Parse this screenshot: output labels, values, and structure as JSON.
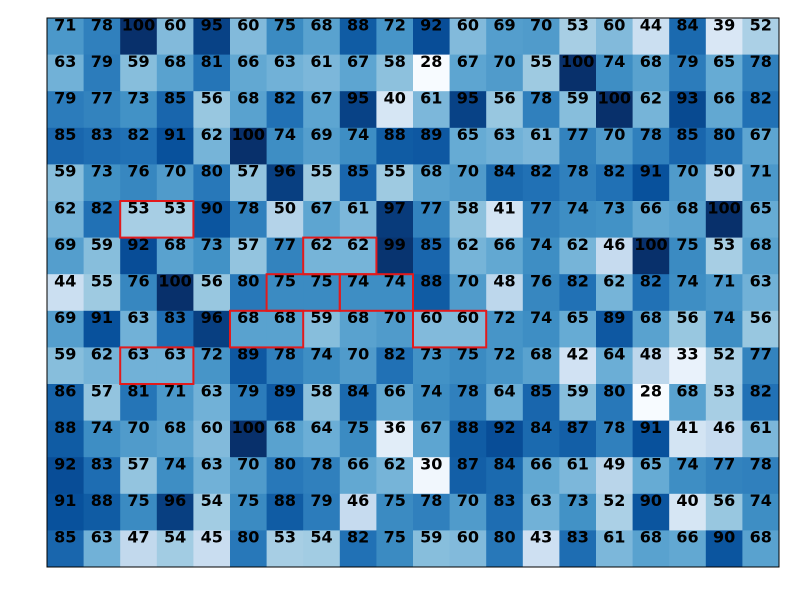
{
  "chart_data": {
    "type": "heatmap",
    "title": "",
    "xlabel": "",
    "ylabel": "",
    "rows": 15,
    "cols": 20,
    "colormap": "Blues",
    "vmin": 28,
    "vmax": 100,
    "values": [
      [
        71,
        78,
        100,
        60,
        95,
        60,
        75,
        68,
        88,
        72,
        92,
        60,
        69,
        70,
        53,
        60,
        44,
        84,
        39,
        52
      ],
      [
        63,
        79,
        59,
        68,
        81,
        66,
        63,
        61,
        67,
        58,
        28,
        67,
        70,
        55,
        100,
        74,
        68,
        79,
        65,
        78
      ],
      [
        79,
        77,
        73,
        85,
        56,
        68,
        82,
        67,
        95,
        40,
        61,
        95,
        56,
        78,
        59,
        100,
        62,
        93,
        66,
        82
      ],
      [
        85,
        83,
        82,
        91,
        62,
        100,
        74,
        69,
        74,
        88,
        89,
        65,
        63,
        61,
        77,
        70,
        78,
        85,
        80,
        67
      ],
      [
        59,
        73,
        76,
        70,
        80,
        57,
        96,
        55,
        85,
        55,
        68,
        70,
        84,
        82,
        78,
        82,
        91,
        70,
        50,
        71
      ],
      [
        62,
        82,
        53,
        53,
        90,
        78,
        50,
        67,
        61,
        97,
        77,
        58,
        41,
        77,
        74,
        73,
        66,
        68,
        100,
        65
      ],
      [
        69,
        59,
        92,
        68,
        73,
        57,
        77,
        62,
        62,
        99,
        85,
        62,
        66,
        74,
        62,
        46,
        100,
        75,
        53,
        68
      ],
      [
        44,
        55,
        76,
        100,
        56,
        80,
        75,
        75,
        74,
        74,
        88,
        70,
        48,
        76,
        82,
        62,
        82,
        74,
        71,
        63
      ],
      [
        69,
        91,
        63,
        83,
        96,
        68,
        68,
        59,
        68,
        70,
        60,
        60,
        72,
        74,
        65,
        89,
        68,
        56,
        74,
        56
      ],
      [
        59,
        62,
        63,
        63,
        72,
        89,
        78,
        74,
        70,
        82,
        73,
        75,
        72,
        68,
        42,
        64,
        48,
        33,
        52,
        77
      ],
      [
        86,
        57,
        81,
        71,
        63,
        79,
        89,
        58,
        84,
        66,
        74,
        78,
        64,
        85,
        59,
        80,
        28,
        68,
        53,
        82
      ],
      [
        88,
        74,
        70,
        68,
        60,
        100,
        68,
        64,
        75,
        36,
        67,
        88,
        92,
        84,
        87,
        78,
        91,
        41,
        46,
        61
      ],
      [
        92,
        83,
        57,
        74,
        63,
        70,
        80,
        78,
        66,
        62,
        30,
        87,
        84,
        66,
        61,
        49,
        65,
        74,
        77,
        78
      ],
      [
        91,
        88,
        75,
        96,
        54,
        75,
        88,
        79,
        46,
        75,
        78,
        70,
        83,
        63,
        73,
        52,
        90,
        40,
        56,
        74
      ],
      [
        85,
        63,
        47,
        54,
        45,
        80,
        53,
        54,
        82,
        75,
        59,
        60,
        80,
        43,
        83,
        61,
        68,
        66,
        90,
        68
      ]
    ],
    "highlights": [
      {
        "row": 5,
        "col": 2,
        "span": 2
      },
      {
        "row": 6,
        "col": 7,
        "span": 2
      },
      {
        "row": 7,
        "col": 6,
        "span": 2
      },
      {
        "row": 7,
        "col": 8,
        "span": 2
      },
      {
        "row": 8,
        "col": 5,
        "span": 2
      },
      {
        "row": 8,
        "col": 10,
        "span": 2
      },
      {
        "row": 9,
        "col": 2,
        "span": 2
      }
    ],
    "highlight_color": "#e31a1c",
    "grid": false,
    "axes_ticks": false
  }
}
